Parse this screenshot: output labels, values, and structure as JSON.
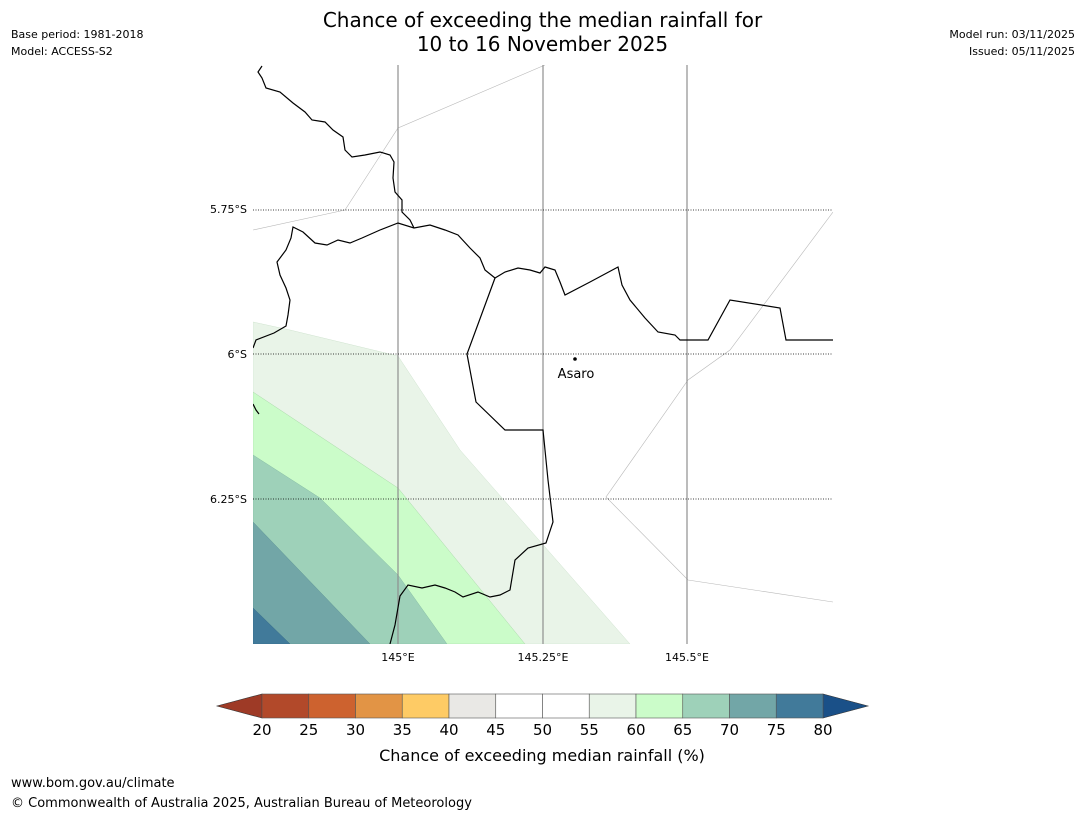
{
  "title_line1": "Chance of exceeding the median rainfall for",
  "title_line2": "10 to 16 November 2025",
  "meta_left": {
    "base_period": "Base period: 1981-2018",
    "model": "Model: ACCESS-S2"
  },
  "meta_right": {
    "model_run": "Model run: 03/11/2025",
    "issued": "Issued: 05/11/2025"
  },
  "map": {
    "lat_labels": [
      "5.75°S",
      "6°S",
      "6.25°S"
    ],
    "lon_labels": [
      "145°E",
      "145.25°E",
      "145.5°E"
    ],
    "place": "Asaro"
  },
  "colorbar": {
    "title": "Chance of exceeding median rainfall (%)",
    "tick_labels": [
      "20",
      "25",
      "30",
      "35",
      "40",
      "45",
      "50",
      "55",
      "60",
      "65",
      "70",
      "75",
      "80"
    ],
    "under_color": "#9e3a26",
    "over_color": "#1a5088",
    "colors": [
      "#b2492a",
      "#cd622f",
      "#e29445",
      "#fecb65",
      "#e9e8e5",
      "#ffffff",
      "#ffffff",
      "#e9f4e8",
      "#cbfcc9",
      "#9ed1b9",
      "#72a6a7",
      "#417a9a"
    ]
  },
  "footer": {
    "url": "www.bom.gov.au/climate",
    "copyright": "© Commonwealth of Australia 2025, Australian Bureau of Meteorology"
  }
}
